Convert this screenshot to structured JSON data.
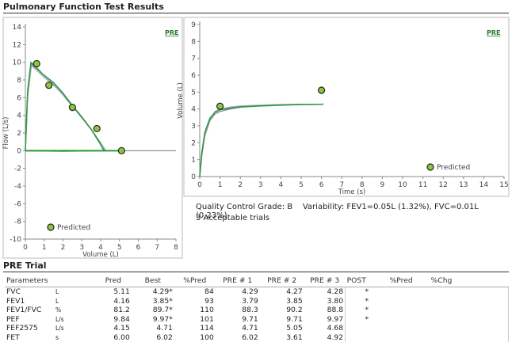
{
  "page": {
    "title": "Pulmonary Function Test Results",
    "quality_grade": "Quality Control Grade: B",
    "variability": "Variability: FEV1=0.05L (1.32%), FVC=0.01L (0.23%)",
    "acceptable": "3 Acceptable trials",
    "trial_title": "PRE Trial"
  },
  "colors": {
    "curve1": "#9a7fa8",
    "curve2": "#9fb0c8",
    "curve3": "#2e9a3c",
    "predicted": "#8cc63f",
    "link": "#2a7a2a",
    "axis": "#888888",
    "grid": "#dddddd"
  },
  "chart_data": [
    {
      "type": "line",
      "tag": "PRE",
      "xlabel": "Volume (L)",
      "ylabel": "Flow (L/s)",
      "xlim": [
        0,
        8
      ],
      "ylim": [
        -10,
        14
      ],
      "xticks": [
        "0",
        "1",
        "2",
        "3",
        "4",
        "5",
        "6",
        "7",
        "8"
      ],
      "yticks": [
        "-10",
        "-8",
        "-6",
        "-4",
        "-2",
        "0",
        "2",
        "4",
        "6",
        "8",
        "10",
        "12",
        "14"
      ],
      "legend": "Predicted",
      "predicted_points": [
        [
          0.6,
          9.84
        ],
        [
          1.25,
          7.4
        ],
        [
          2.5,
          4.9
        ],
        [
          3.8,
          2.5
        ],
        [
          5.11,
          0.0
        ]
      ],
      "series": [
        {
          "values": [
            [
              0,
              0
            ],
            [
              0.12,
              6.5
            ],
            [
              0.3,
              9.8
            ],
            [
              0.5,
              9.4
            ],
            [
              0.9,
              8.5
            ],
            [
              1.5,
              7.5
            ],
            [
              2.0,
              6.3
            ],
            [
              2.5,
              5.0
            ],
            [
              3.0,
              3.7
            ],
            [
              3.5,
              2.4
            ],
            [
              3.9,
              1.0
            ],
            [
              4.2,
              0.1
            ],
            [
              4.25,
              0
            ]
          ]
        },
        {
          "values": [
            [
              0,
              0
            ],
            [
              0.12,
              6.0
            ],
            [
              0.32,
              9.6
            ],
            [
              0.55,
              9.2
            ],
            [
              1.0,
              8.3
            ],
            [
              1.6,
              7.2
            ],
            [
              2.1,
              6.1
            ],
            [
              2.6,
              4.8
            ],
            [
              3.1,
              3.5
            ],
            [
              3.6,
              2.1
            ],
            [
              4.0,
              0.9
            ],
            [
              4.25,
              0.1
            ],
            [
              4.3,
              0
            ]
          ]
        },
        {
          "values": [
            [
              0,
              0
            ],
            [
              0.12,
              6.8
            ],
            [
              0.3,
              9.97
            ],
            [
              0.5,
              9.6
            ],
            [
              0.9,
              8.7
            ],
            [
              1.5,
              7.7
            ],
            [
              2.0,
              6.5
            ],
            [
              2.5,
              5.1
            ],
            [
              3.0,
              3.8
            ],
            [
              3.5,
              2.4
            ],
            [
              3.9,
              1.1
            ],
            [
              4.15,
              0.1
            ],
            [
              4.2,
              0
            ],
            [
              2.0,
              -0.05
            ],
            [
              0,
              0
            ]
          ]
        }
      ]
    },
    {
      "type": "line",
      "tag": "PRE",
      "xlabel": "Time (s)",
      "ylabel": "Volume (L)",
      "xlim": [
        0,
        15
      ],
      "ylim": [
        0,
        9
      ],
      "xticks": [
        "0",
        "1",
        "2",
        "3",
        "4",
        "5",
        "6",
        "7",
        "8",
        "9",
        "10",
        "11",
        "12",
        "13",
        "14",
        "15"
      ],
      "yticks": [
        "0",
        "1",
        "2",
        "3",
        "4",
        "5",
        "6",
        "7",
        "8",
        "9"
      ],
      "legend": "Predicted",
      "predicted_points": [
        [
          1.0,
          4.16
        ],
        [
          6.0,
          5.11
        ]
      ],
      "series": [
        {
          "values": [
            [
              0,
              0
            ],
            [
              0.1,
              1.2
            ],
            [
              0.25,
              2.4
            ],
            [
              0.5,
              3.3
            ],
            [
              0.75,
              3.7
            ],
            [
              1,
              3.85
            ],
            [
              1.5,
              4.0
            ],
            [
              2,
              4.1
            ],
            [
              3,
              4.2
            ],
            [
              4,
              4.25
            ],
            [
              5,
              4.27
            ],
            [
              6,
              4.27
            ]
          ]
        },
        {
          "values": [
            [
              0,
              0
            ],
            [
              0.1,
              1.3
            ],
            [
              0.25,
              2.5
            ],
            [
              0.5,
              3.4
            ],
            [
              0.75,
              3.85
            ],
            [
              1,
              4.0
            ],
            [
              1.5,
              4.12
            ],
            [
              2,
              4.18
            ],
            [
              3,
              4.23
            ],
            [
              4,
              4.27
            ],
            [
              5,
              4.28
            ],
            [
              6,
              4.28
            ]
          ]
        },
        {
          "values": [
            [
              0,
              0
            ],
            [
              0.1,
              1.4
            ],
            [
              0.25,
              2.6
            ],
            [
              0.5,
              3.45
            ],
            [
              0.75,
              3.8
            ],
            [
              1,
              3.95
            ],
            [
              1.5,
              4.05
            ],
            [
              2,
              4.12
            ],
            [
              3,
              4.18
            ],
            [
              4,
              4.23
            ],
            [
              5,
              4.26
            ],
            [
              6,
              4.28
            ],
            [
              6.1,
              4.29
            ]
          ]
        }
      ]
    }
  ],
  "table": {
    "headers": [
      "Parameters",
      "",
      "Pred",
      "Best",
      "%Pred",
      "PRE # 1",
      "PRE # 2",
      "PRE # 3",
      "POST",
      "%Pred",
      "%Chg"
    ],
    "rows": [
      {
        "param": "FVC",
        "unit": "L",
        "pred": "5.11",
        "best": "4.29*",
        "pct": "84",
        "p1": "4.29",
        "p2": "4.27",
        "p3": "4.28",
        "post": "*",
        "post_pct": "",
        "chg": ""
      },
      {
        "param": "FEV1",
        "unit": "L",
        "pred": "4.16",
        "best": "3.85*",
        "pct": "93",
        "p1": "3.79",
        "p2": "3.85",
        "p3": "3.80",
        "post": "*",
        "post_pct": "",
        "chg": ""
      },
      {
        "param": "FEV1/FVC",
        "unit": "%",
        "pred": "81.2",
        "best": "89.7*",
        "pct": "110",
        "p1": "88.3",
        "p2": "90.2",
        "p3": "88.8",
        "post": "*",
        "post_pct": "",
        "chg": ""
      },
      {
        "param": "PEF",
        "unit": "L/s",
        "pred": "9.84",
        "best": "9.97*",
        "pct": "101",
        "p1": "9.71",
        "p2": "9.71",
        "p3": "9.97",
        "post": "*",
        "post_pct": "",
        "chg": ""
      },
      {
        "param": "FEF2575",
        "unit": "L/s",
        "pred": "4.15",
        "best": "4.71",
        "pct": "114",
        "p1": "4.71",
        "p2": "5.05",
        "p3": "4.68",
        "post": "",
        "post_pct": "",
        "chg": ""
      },
      {
        "param": "FET",
        "unit": "s",
        "pred": "6.00",
        "best": "6.02",
        "pct": "100",
        "p1": "6.02",
        "p2": "3.61",
        "p3": "4.92",
        "post": "",
        "post_pct": "",
        "chg": ""
      }
    ]
  }
}
